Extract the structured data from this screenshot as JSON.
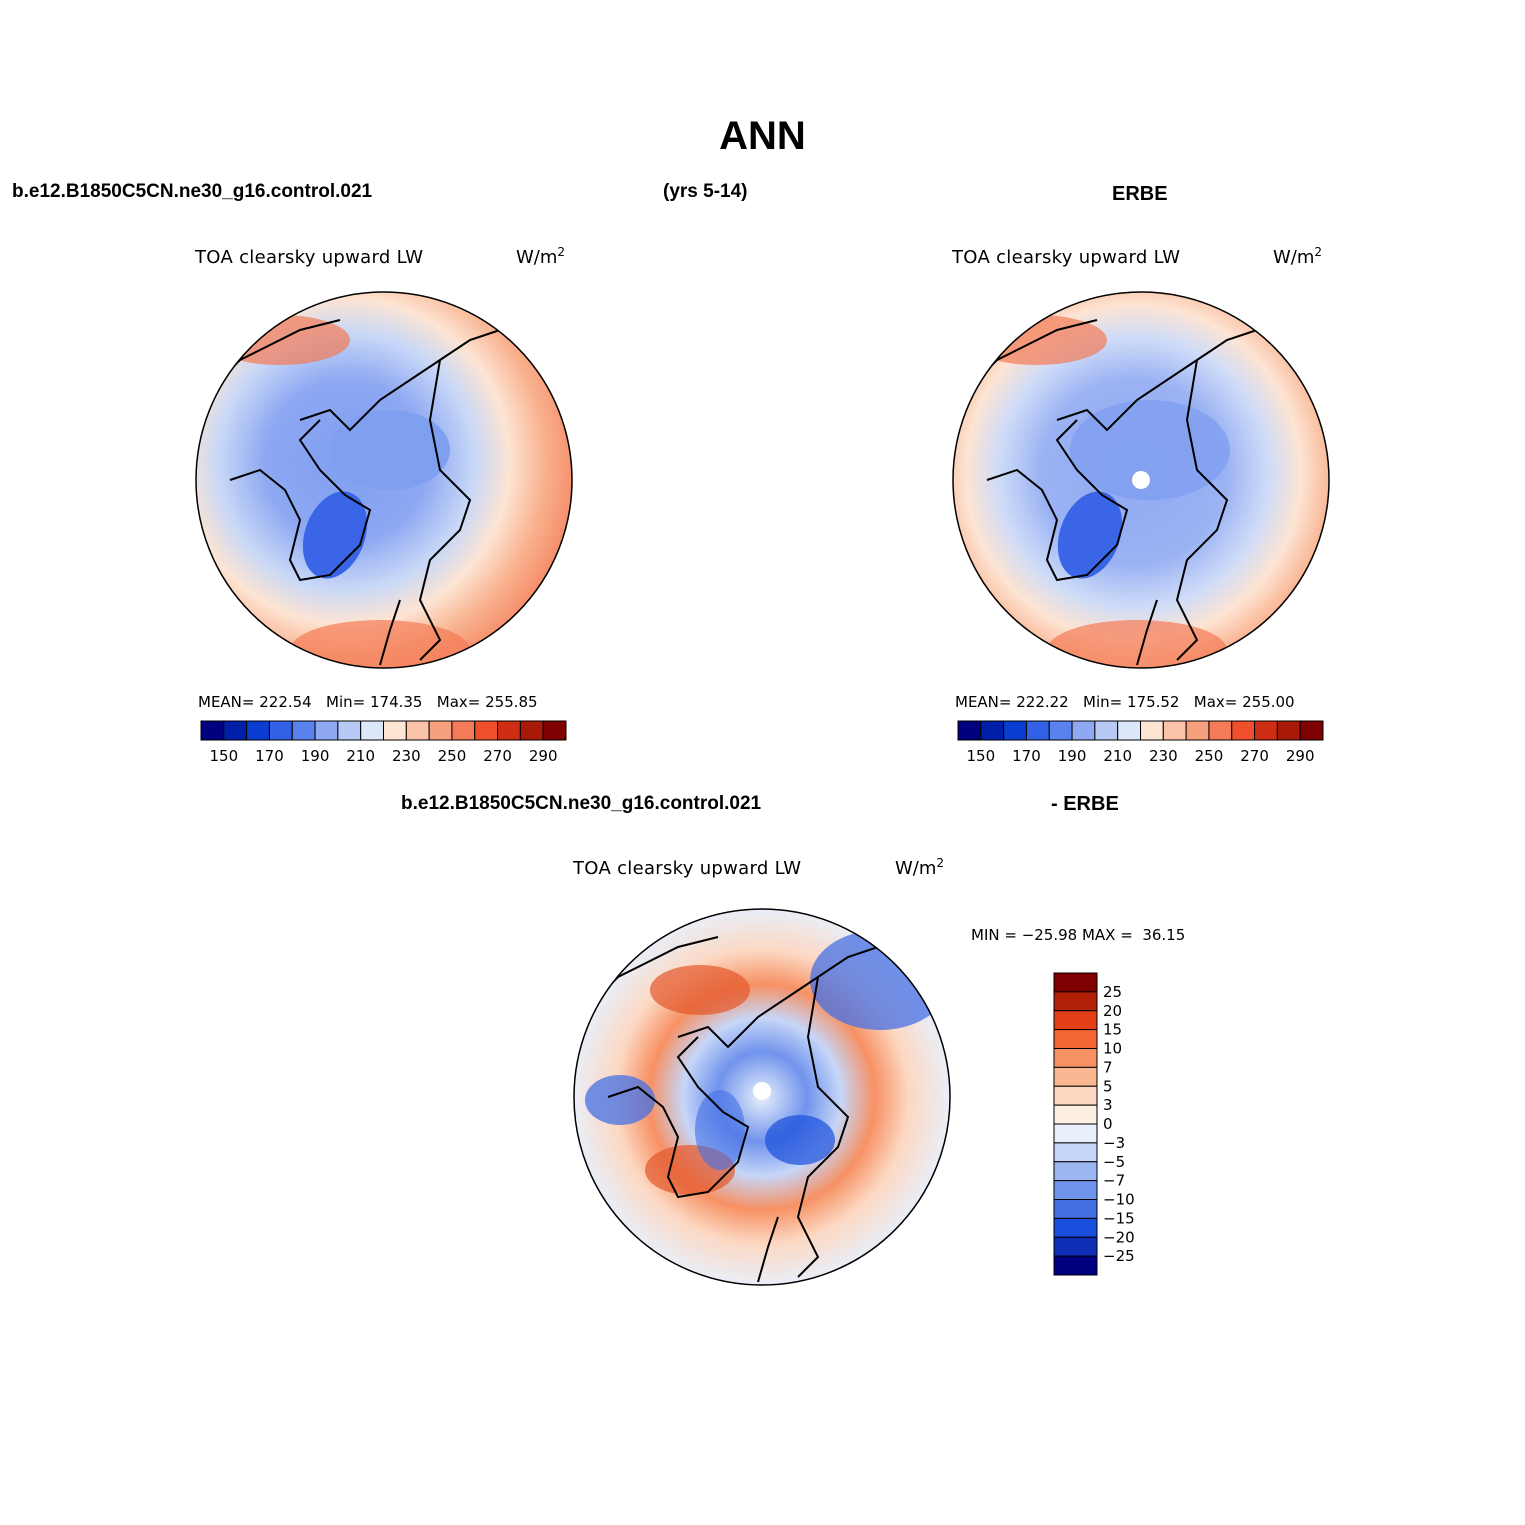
{
  "figure": {
    "main_title": "ANN",
    "model_case": "b.e12.B1850C5CN.ne30_g16.control.021",
    "years": "(yrs 5-14)",
    "obs_name": "ERBE",
    "diff_case": "b.e12.B1850C5CN.ne30_g16.control.021",
    "diff_suffix": "- ERBE"
  },
  "panels": {
    "model": {
      "variable": "TOA clearsky upward LW",
      "units": "W/m",
      "units_sup": "2",
      "stats": "MEAN= 222.54   Min= 174.35   Max= 255.85"
    },
    "obs": {
      "variable": "TOA clearsky upward LW",
      "units": "W/m",
      "units_sup": "2",
      "stats": "MEAN= 222.22   Min= 175.52   Max= 255.00"
    },
    "diff": {
      "variable": "TOA clearsky upward LW",
      "units": "W/m",
      "units_sup": "2",
      "stats": "MIN = −25.98 MAX =  36.15"
    }
  },
  "colorbar_abs": {
    "colors": [
      "#00007f",
      "#001fa8",
      "#0a3ed1",
      "#3261e5",
      "#5a82ee",
      "#8ea8f2",
      "#b7c9f5",
      "#dce8fa",
      "#fde4d3",
      "#fbc4a8",
      "#f7a07e",
      "#f47b58",
      "#ef4f2b",
      "#cf2d13",
      "#a81908",
      "#7f0000"
    ],
    "tick_labels": [
      "150",
      "170",
      "190",
      "210",
      "230",
      "250",
      "270",
      "290"
    ]
  },
  "colorbar_diff": {
    "colors": [
      "#7f0000",
      "#b22008",
      "#e33f16",
      "#f36533",
      "#f79164",
      "#fab892",
      "#fcd8c2",
      "#fdeee2",
      "#e8f0fc",
      "#c6d6f8",
      "#9cb6f2",
      "#7093ec",
      "#4570e4",
      "#1a4edc",
      "#0e2fb5",
      "#00007f"
    ],
    "tick_labels": [
      "25",
      "20",
      "15",
      "10",
      "7",
      "5",
      "3",
      "0",
      "−3",
      "−5",
      "−7",
      "−10",
      "−15",
      "−20",
      "−25"
    ]
  }
}
